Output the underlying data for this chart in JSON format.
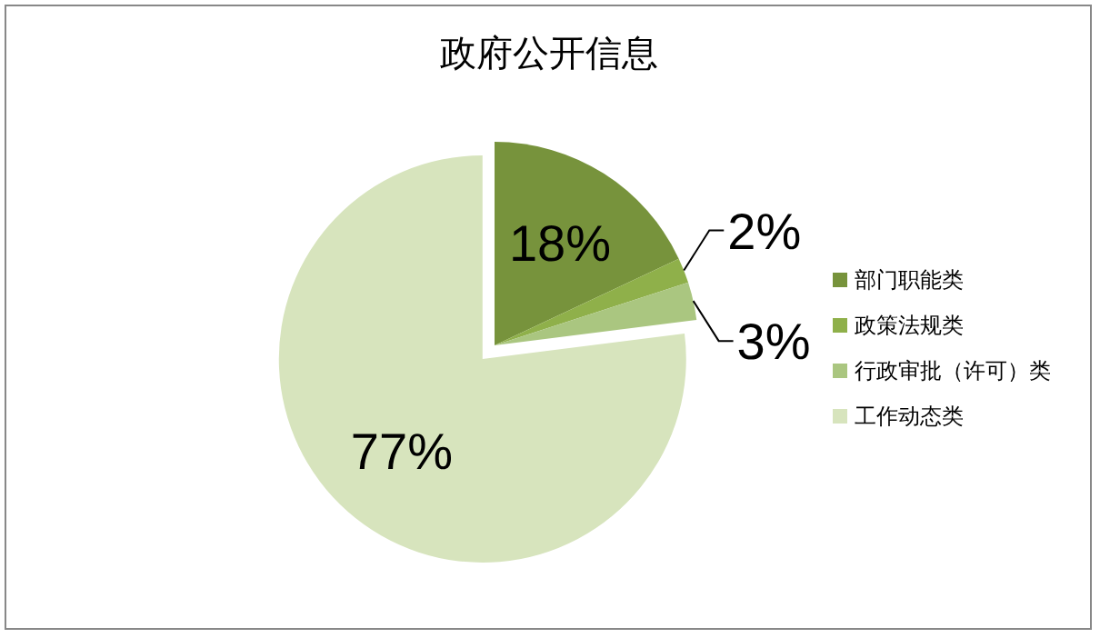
{
  "chart_data": {
    "type": "pie",
    "title": "政府公开信息",
    "categories": [
      "部门职能类",
      "政策法规类",
      "行政审批（许可）类",
      "工作动态类"
    ],
    "values": [
      18,
      2,
      3,
      77
    ],
    "value_labels": [
      "18%",
      "2%",
      "3%",
      "77%"
    ],
    "colors": [
      "#77933c",
      "#8fb04a",
      "#aac680",
      "#d7e4bd"
    ],
    "legend": "right"
  }
}
